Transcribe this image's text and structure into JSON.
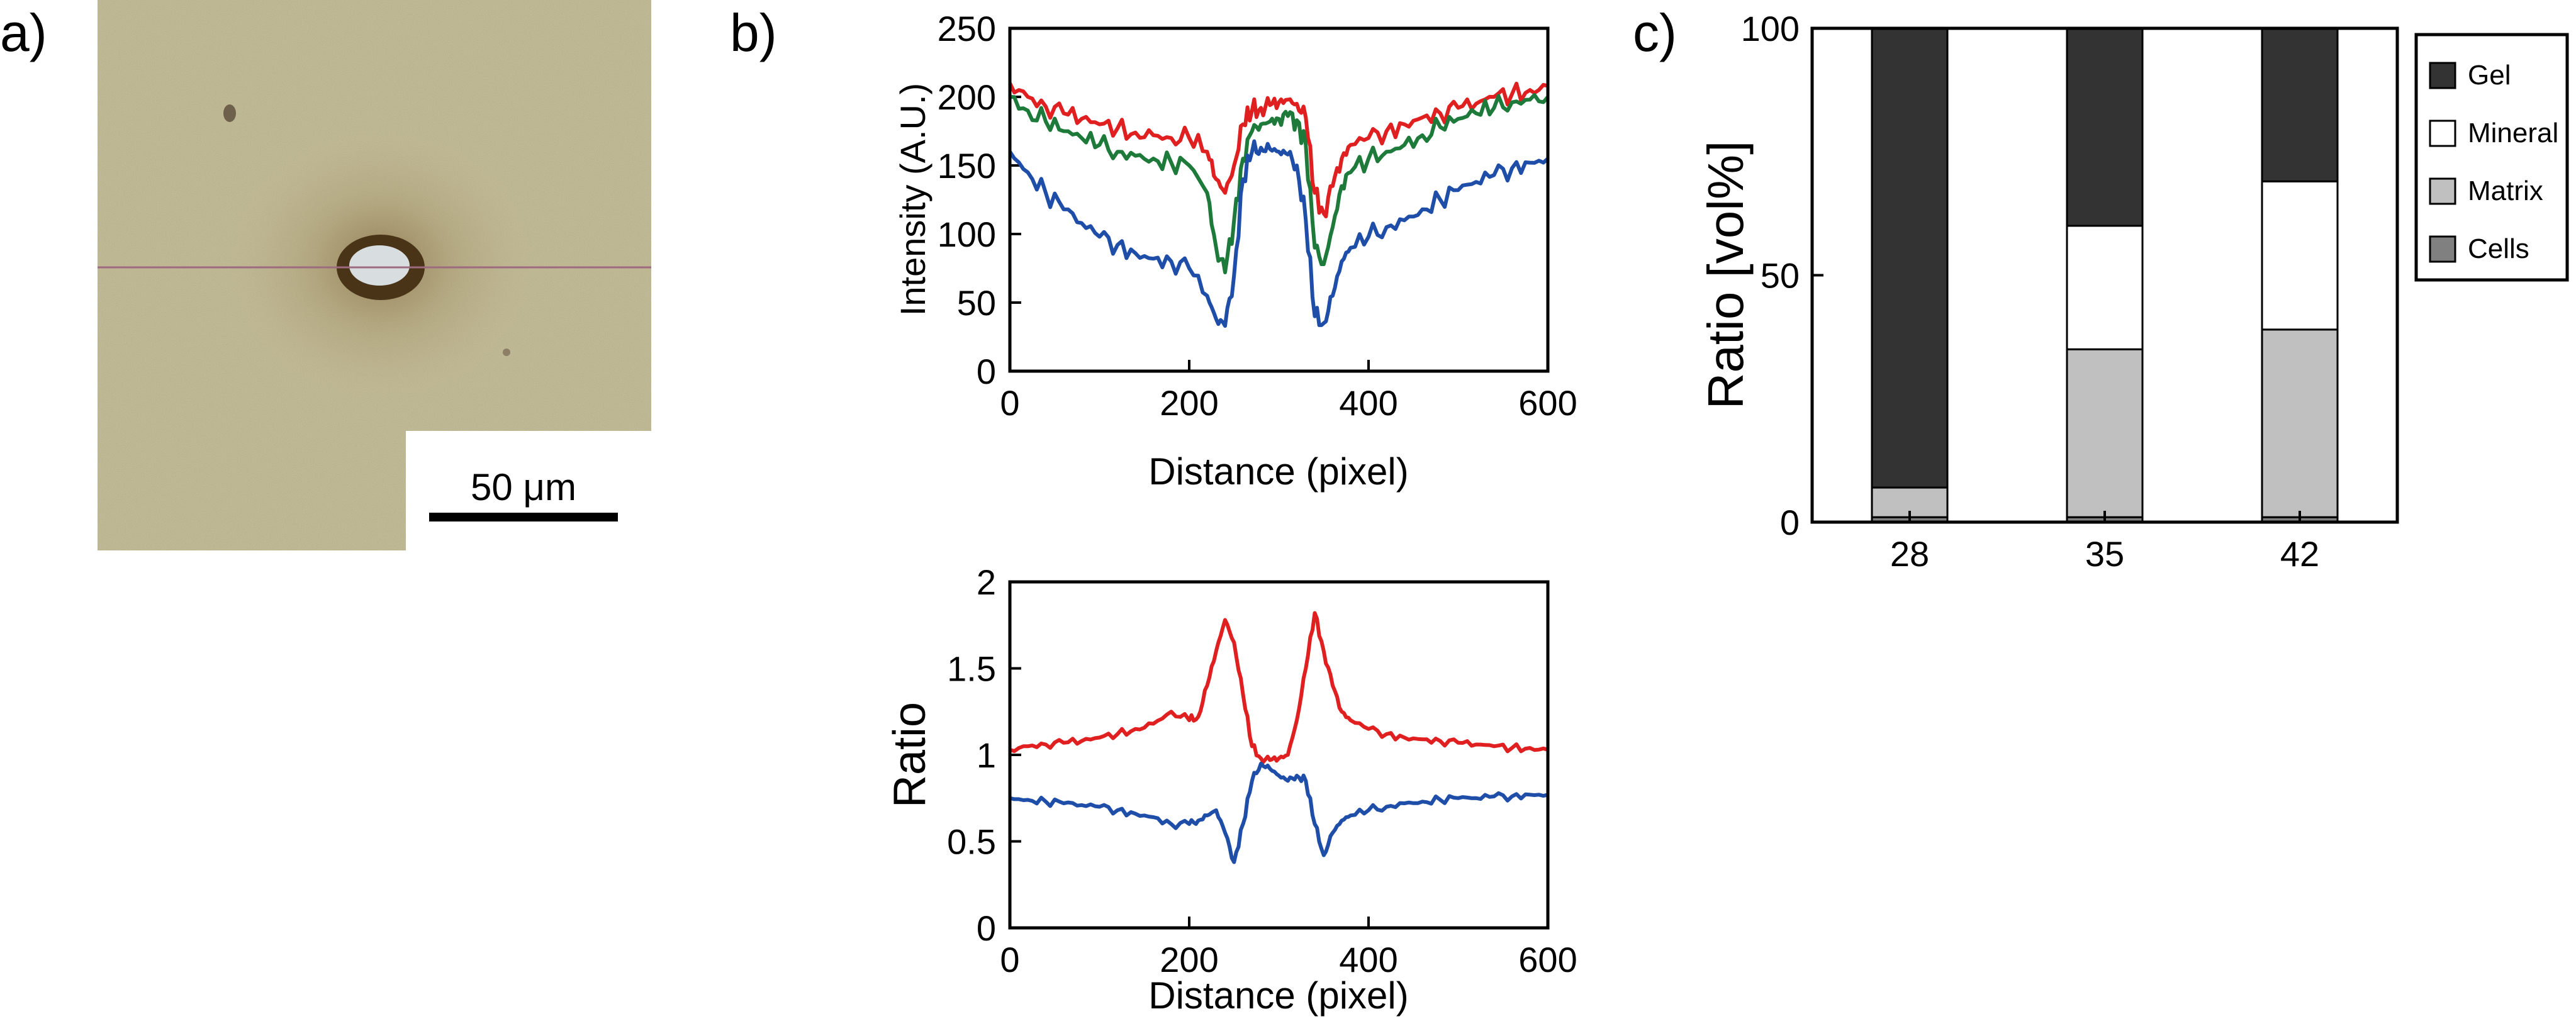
{
  "panels": {
    "a": {
      "letter": "a)",
      "scale_bar_label": "50 μm"
    },
    "b": {
      "letter": "b)"
    },
    "c": {
      "letter": "c)"
    }
  },
  "chart_data": [
    {
      "type": "line",
      "panel": "b-top",
      "title": "",
      "xlabel": "Distance (pixel)",
      "ylabel": "Intensity (A.U.)",
      "xlim": [
        0,
        600
      ],
      "ylim": [
        0,
        250
      ],
      "xticks": [
        0,
        200,
        400,
        600
      ],
      "yticks": [
        0,
        50,
        100,
        150,
        200,
        250
      ],
      "x": [
        0,
        20,
        40,
        60,
        80,
        100,
        120,
        140,
        160,
        180,
        200,
        220,
        230,
        240,
        250,
        260,
        270,
        280,
        290,
        300,
        310,
        320,
        330,
        340,
        350,
        360,
        370,
        380,
        400,
        420,
        440,
        460,
        480,
        500,
        520,
        540,
        560,
        580,
        600
      ],
      "series": [
        {
          "name": "red",
          "color": "#e02020",
          "values": [
            210,
            200,
            193,
            188,
            184,
            180,
            177,
            174,
            172,
            170,
            170,
            160,
            140,
            130,
            150,
            180,
            190,
            192,
            194,
            196,
            198,
            195,
            185,
            130,
            115,
            135,
            155,
            165,
            170,
            175,
            180,
            185,
            188,
            192,
            195,
            200,
            202,
            205,
            208
          ]
        },
        {
          "name": "green",
          "color": "#1e7a3a",
          "values": [
            200,
            190,
            182,
            175,
            170,
            165,
            160,
            157,
            155,
            152,
            150,
            130,
            90,
            72,
            110,
            155,
            175,
            180,
            182,
            184,
            186,
            183,
            165,
            90,
            78,
            105,
            135,
            145,
            155,
            160,
            165,
            172,
            178,
            184,
            188,
            192,
            196,
            198,
            200
          ]
        },
        {
          "name": "blue",
          "color": "#1f4ea8",
          "values": [
            160,
            145,
            130,
            118,
            108,
            98,
            92,
            86,
            82,
            80,
            75,
            55,
            38,
            33,
            70,
            140,
            160,
            163,
            162,
            160,
            158,
            150,
            110,
            40,
            35,
            55,
            80,
            90,
            98,
            105,
            110,
            118,
            125,
            132,
            138,
            143,
            148,
            152,
            155
          ]
        }
      ]
    },
    {
      "type": "line",
      "panel": "b-bottom",
      "title": "",
      "xlabel": "Distance (pixel)",
      "ylabel": "Ratio",
      "xlim": [
        0,
        600
      ],
      "ylim": [
        0,
        2
      ],
      "xticks": [
        0,
        200,
        400,
        600
      ],
      "yticks": [
        0,
        0.5,
        1,
        1.5,
        2
      ],
      "yticklabels": [
        "0",
        "0.5",
        "1",
        "1.5",
        "2"
      ],
      "x": [
        0,
        20,
        40,
        60,
        80,
        100,
        120,
        140,
        160,
        180,
        200,
        210,
        220,
        230,
        240,
        250,
        260,
        270,
        280,
        290,
        300,
        310,
        320,
        330,
        340,
        350,
        360,
        370,
        380,
        400,
        420,
        440,
        460,
        480,
        500,
        520,
        540,
        560,
        580,
        600
      ],
      "series": [
        {
          "name": "red",
          "color": "#e02020",
          "values": [
            1.03,
            1.05,
            1.06,
            1.07,
            1.08,
            1.1,
            1.12,
            1.15,
            1.18,
            1.25,
            1.2,
            1.22,
            1.4,
            1.6,
            1.78,
            1.65,
            1.35,
            1.05,
            0.98,
            0.97,
            0.98,
            1.0,
            1.2,
            1.5,
            1.82,
            1.6,
            1.4,
            1.25,
            1.2,
            1.15,
            1.12,
            1.1,
            1.09,
            1.08,
            1.07,
            1.06,
            1.05,
            1.04,
            1.04,
            1.03
          ]
        },
        {
          "name": "blue",
          "color": "#1f4ea8",
          "values": [
            0.75,
            0.74,
            0.73,
            0.72,
            0.71,
            0.7,
            0.68,
            0.66,
            0.64,
            0.6,
            0.6,
            0.62,
            0.65,
            0.68,
            0.55,
            0.38,
            0.6,
            0.85,
            0.95,
            0.92,
            0.88,
            0.85,
            0.88,
            0.85,
            0.6,
            0.42,
            0.55,
            0.62,
            0.65,
            0.68,
            0.7,
            0.72,
            0.73,
            0.74,
            0.75,
            0.75,
            0.76,
            0.76,
            0.77,
            0.77
          ]
        }
      ]
    },
    {
      "type": "bar",
      "stacked": true,
      "panel": "c",
      "title": "",
      "xlabel": "",
      "ylabel": "Ratio [vol%]",
      "ylim": [
        0,
        100
      ],
      "yticks": [
        0,
        50,
        100
      ],
      "categories": [
        "28",
        "35",
        "42"
      ],
      "legend_position": "top-right",
      "series": [
        {
          "name": "Cells",
          "color": "#808080",
          "values": [
            1,
            1,
            1
          ]
        },
        {
          "name": "Matrix",
          "color": "#c0c0c0",
          "values": [
            6,
            34,
            38
          ]
        },
        {
          "name": "Mineral",
          "color": "#ffffff",
          "values": [
            0,
            25,
            30
          ]
        },
        {
          "name": "Gel",
          "color": "#333333",
          "values": [
            93,
            40,
            31
          ]
        }
      ],
      "legend_order": [
        "Gel",
        "Mineral",
        "Matrix",
        "Cells"
      ]
    }
  ]
}
